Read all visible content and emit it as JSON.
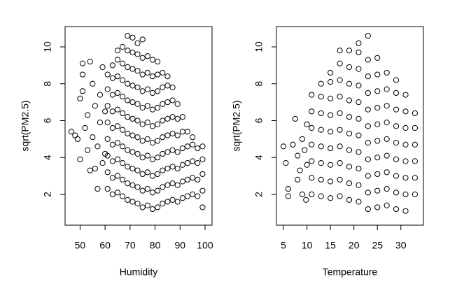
{
  "chart_data": [
    {
      "type": "scatter",
      "xlabel": "Humidity",
      "ylabel": "sqrt(PM2.5)",
      "color": "#000000",
      "xlim": [
        44,
        102.8
      ],
      "ylim": [
        0.33,
        11.1
      ],
      "xticks": [
        50,
        60,
        70,
        80,
        90,
        100
      ],
      "yticks": [
        2,
        4,
        6,
        8,
        10
      ],
      "x": [
        46.5,
        48,
        49,
        50,
        50,
        51,
        51,
        51,
        52,
        53,
        53,
        54,
        54,
        55,
        55,
        56,
        56,
        57,
        57,
        58,
        58,
        59,
        59,
        60,
        60,
        61,
        61,
        61,
        61,
        61,
        61,
        61,
        61,
        63,
        63,
        63,
        63,
        63,
        63,
        63,
        63,
        63,
        65,
        65,
        65,
        65,
        65,
        65,
        65,
        65,
        65,
        65,
        67,
        67,
        67,
        67,
        67,
        67,
        67,
        67,
        67,
        67,
        69,
        69,
        69,
        69,
        69,
        69,
        69,
        69,
        69,
        69,
        69,
        71,
        71,
        71,
        71,
        71,
        71,
        71,
        71,
        71,
        71,
        71,
        73,
        73,
        73,
        73,
        73,
        73,
        73,
        73,
        73,
        73,
        73,
        75,
        75,
        75,
        75,
        75,
        75,
        75,
        75,
        75,
        75,
        75,
        77,
        77,
        77,
        77,
        77,
        77,
        77,
        77,
        77,
        77,
        79,
        79,
        79,
        79,
        79,
        79,
        79,
        79,
        79,
        79,
        81,
        81,
        81,
        81,
        81,
        81,
        81,
        81,
        81,
        81,
        83,
        83,
        83,
        83,
        83,
        83,
        83,
        83,
        83,
        85,
        85,
        85,
        85,
        85,
        85,
        85,
        85,
        85,
        87,
        87,
        87,
        87,
        87,
        87,
        87,
        87,
        89,
        89,
        89,
        89,
        89,
        89,
        89,
        91,
        91,
        91,
        91,
        91,
        91,
        93,
        93,
        93,
        93,
        93,
        95,
        95,
        95,
        95,
        95,
        97,
        97,
        97,
        97,
        99,
        99,
        99,
        99,
        99
      ],
      "y": [
        5.4,
        5.2,
        5.0,
        3.9,
        7.2,
        7.6,
        9.1,
        8.5,
        5.6,
        4.4,
        6.3,
        9.2,
        3.3,
        5.1,
        8.0,
        3.4,
        6.8,
        4.6,
        2.3,
        7.4,
        5.9,
        8.9,
        3.7,
        6.5,
        4.2,
        2.3,
        3.2,
        4.1,
        5.0,
        5.9,
        6.8,
        7.7,
        8.5,
        2.0,
        2.9,
        3.8,
        4.7,
        5.6,
        6.5,
        7.4,
        8.3,
        9.0,
        2.1,
        3.0,
        3.9,
        4.8,
        5.7,
        6.6,
        7.5,
        8.4,
        9.3,
        9.8,
        1.9,
        2.8,
        3.7,
        4.6,
        5.5,
        6.4,
        7.3,
        8.2,
        9.1,
        10.0,
        1.7,
        2.6,
        3.5,
        4.4,
        5.3,
        6.2,
        7.1,
        8.0,
        8.9,
        9.8,
        10.6,
        1.6,
        2.5,
        3.4,
        4.3,
        5.2,
        6.1,
        7.0,
        7.9,
        8.8,
        9.7,
        10.5,
        1.5,
        2.4,
        3.3,
        4.2,
        5.1,
        6.0,
        6.9,
        7.8,
        8.7,
        9.6,
        10.2,
        1.3,
        2.2,
        3.1,
        4.0,
        4.9,
        5.8,
        6.7,
        7.6,
        8.5,
        9.4,
        10.4,
        1.4,
        2.3,
        3.2,
        4.1,
        5.0,
        5.9,
        6.8,
        7.7,
        8.6,
        9.5,
        1.2,
        2.1,
        3.0,
        3.9,
        4.8,
        5.7,
        6.6,
        7.5,
        8.4,
        9.3,
        1.3,
        2.2,
        3.1,
        4.0,
        4.9,
        5.8,
        6.7,
        7.6,
        8.5,
        9.2,
        1.5,
        2.4,
        3.3,
        4.2,
        5.1,
        6.0,
        6.9,
        7.8,
        8.6,
        1.6,
        2.5,
        3.4,
        4.3,
        5.2,
        6.1,
        7.0,
        7.9,
        8.4,
        1.7,
        2.6,
        3.5,
        4.4,
        5.3,
        6.2,
        7.1,
        7.8,
        1.6,
        2.5,
        3.4,
        4.3,
        5.2,
        6.1,
        6.9,
        1.8,
        2.7,
        3.6,
        4.5,
        5.4,
        6.2,
        1.9,
        2.8,
        3.7,
        4.6,
        5.4,
        2.0,
        2.9,
        3.8,
        4.7,
        5.1,
        1.9,
        2.8,
        3.7,
        4.5,
        1.3,
        2.2,
        3.1,
        3.9,
        4.6
      ]
    },
    {
      "type": "scatter",
      "xlabel": "Temperature",
      "ylabel": "sqrt(PM2.5)",
      "color": "#000000",
      "xlim": [
        3.5,
        34.8
      ],
      "ylim": [
        0.33,
        11.1
      ],
      "xticks": [
        5,
        10,
        15,
        20,
        25,
        30
      ],
      "yticks": [
        2,
        4,
        6,
        8,
        10
      ],
      "x": [
        5,
        5.5,
        6,
        6,
        7,
        7.5,
        8,
        8,
        8.5,
        9,
        9,
        9.5,
        9.8,
        10,
        10,
        11,
        11,
        11,
        11,
        11,
        11,
        11,
        13,
        13,
        13,
        13,
        13,
        13,
        13,
        13,
        15,
        15,
        15,
        15,
        15,
        15,
        15,
        15,
        15,
        17,
        17,
        17,
        17,
        17,
        17,
        17,
        17,
        17,
        17,
        19,
        19,
        19,
        19,
        19,
        19,
        19,
        19,
        19,
        19,
        21,
        21,
        21,
        21,
        21,
        21,
        21,
        21,
        21,
        21,
        21,
        23,
        23,
        23,
        23,
        23,
        23,
        23,
        23,
        23,
        23,
        23,
        25,
        25,
        25,
        25,
        25,
        25,
        25,
        25,
        25,
        25,
        27,
        27,
        27,
        27,
        27,
        27,
        27,
        27,
        27,
        29,
        29,
        29,
        29,
        29,
        29,
        29,
        29,
        29,
        31,
        31,
        31,
        31,
        31,
        31,
        31,
        31,
        33,
        33,
        33,
        33,
        33,
        33
      ],
      "y": [
        4.6,
        3.7,
        2.3,
        1.9,
        4.7,
        6.1,
        2.8,
        4.1,
        3.3,
        5.0,
        2.0,
        4.4,
        1.7,
        3.6,
        5.8,
        2.0,
        2.9,
        3.8,
        4.7,
        5.6,
        6.5,
        7.4,
        1.9,
        2.8,
        3.7,
        4.6,
        5.5,
        6.4,
        7.3,
        8.0,
        1.8,
        2.7,
        3.6,
        4.5,
        5.4,
        6.3,
        7.2,
        8.1,
        8.6,
        1.9,
        2.8,
        3.7,
        4.6,
        5.5,
        6.4,
        7.3,
        8.2,
        9.1,
        9.8,
        1.7,
        2.6,
        3.5,
        4.4,
        5.3,
        6.2,
        7.1,
        8.0,
        8.9,
        9.8,
        1.6,
        2.5,
        3.4,
        4.3,
        5.2,
        6.1,
        7.0,
        7.9,
        8.8,
        9.7,
        10.2,
        1.2,
        2.1,
        3.0,
        3.9,
        4.8,
        5.7,
        6.6,
        7.5,
        8.4,
        9.3,
        10.6,
        1.3,
        2.2,
        3.1,
        4.0,
        4.9,
        5.8,
        6.7,
        7.6,
        8.5,
        9.4,
        1.4,
        2.3,
        3.2,
        4.1,
        5.0,
        5.9,
        6.8,
        7.7,
        8.6,
        1.2,
        2.1,
        3.0,
        3.9,
        4.8,
        5.7,
        6.6,
        7.5,
        8.2,
        1.1,
        2.0,
        2.9,
        3.8,
        4.7,
        5.6,
        6.5,
        7.4,
        2.0,
        2.9,
        3.8,
        4.7,
        5.6,
        6.4
      ]
    }
  ]
}
